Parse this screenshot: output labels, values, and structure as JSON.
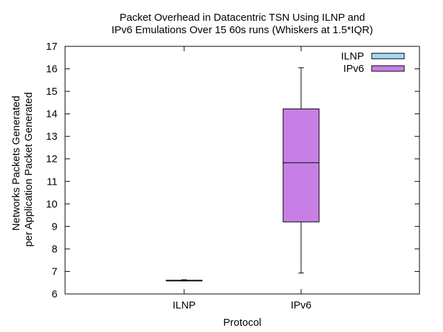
{
  "chart_data": {
    "type": "box",
    "title_lines": [
      "Packet Overhead in Datacentric TSN Using ILNP and",
      "IPv6 Emulations Over 15 60s runs (Whiskers at 1.5*IQR)"
    ],
    "xlabel": "Protocol",
    "ylabel_lines": [
      "Networks Packets Generated",
      "per Application Packet Generated"
    ],
    "ylim": [
      6,
      17
    ],
    "yticks": [
      6,
      7,
      8,
      9,
      10,
      11,
      12,
      13,
      14,
      15,
      16,
      17
    ],
    "categories": [
      "ILNP",
      "IPv6"
    ],
    "legend_position": "top-right",
    "series": [
      {
        "name": "ILNP",
        "color": "#a3d8f2",
        "whisker_low": 6.58,
        "q1": 6.59,
        "median": 6.6,
        "q3": 6.61,
        "whisker_high": 6.63
      },
      {
        "name": "IPv6",
        "color": "#c77fe6",
        "whisker_low": 6.93,
        "q1": 9.2,
        "median": 11.83,
        "q3": 14.22,
        "whisker_high": 16.05
      }
    ]
  }
}
